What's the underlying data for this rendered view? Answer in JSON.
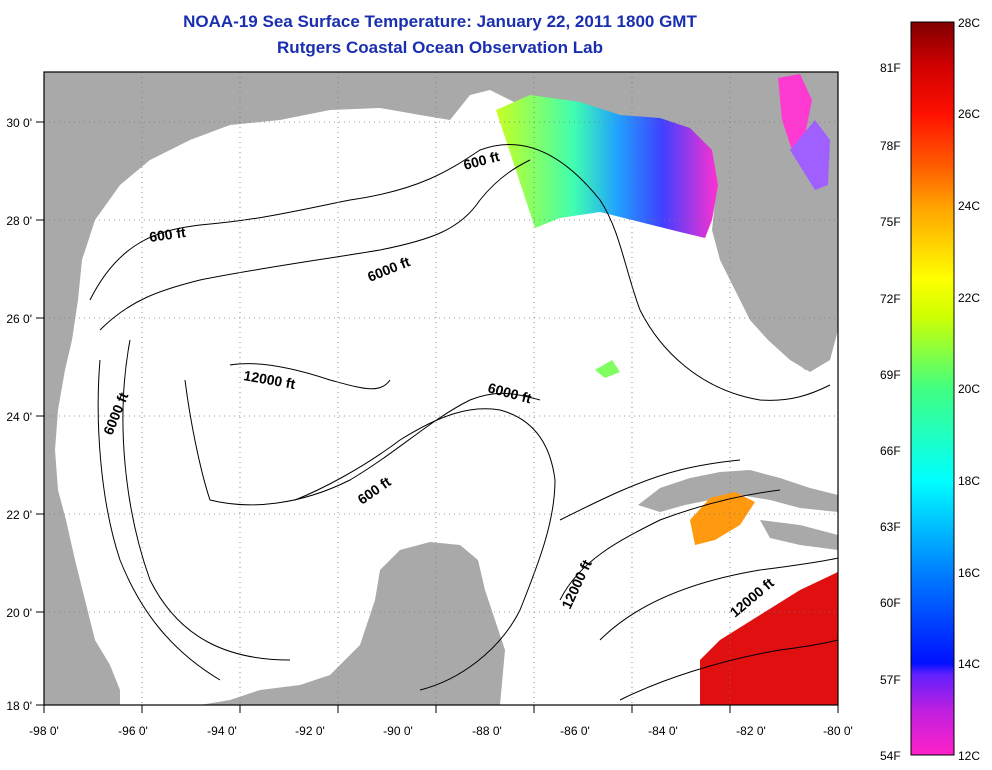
{
  "title": "NOAA-19 Sea Surface Temperature:  January 22, 2011 1800 GMT",
  "subtitle": "Rutgers Coastal Ocean Observation Lab",
  "map": {
    "x_ticks": [
      "-98 0'",
      "-96 0'",
      "-94 0'",
      "-92 0'",
      "-90 0'",
      "-88 0'",
      "-86 0'",
      "-84 0'",
      "-82 0'",
      "-80 0'"
    ],
    "y_ticks": [
      "30 0'",
      "28 0'",
      "26 0'",
      "24 0'",
      "22 0'",
      "20 0'",
      "18 0'"
    ],
    "contour_labels": [
      "600 ft",
      "600 ft",
      "6000 ft",
      "6000 ft",
      "12000 ft",
      "6000 ft",
      "600 ft",
      "12000 ft",
      "12000 ft"
    ],
    "land_color": "#a9a9a9",
    "ocean_color": "#ffffff"
  },
  "colorbar": {
    "fahrenheit": [
      "81F",
      "78F",
      "75F",
      "72F",
      "69F",
      "66F",
      "63F",
      "60F",
      "57F",
      "54F"
    ],
    "celsius": [
      "28C",
      "26C",
      "24C",
      "22C",
      "20C",
      "18C",
      "16C",
      "14C",
      "12C"
    ],
    "range_celsius": [
      12,
      28
    ],
    "colors": [
      "#ff20c8",
      "#8020ff",
      "#0020ff",
      "#00a0ff",
      "#00ffff",
      "#40ff80",
      "#c0ff00",
      "#ffff00",
      "#ffa000",
      "#ff4000",
      "#ff0000",
      "#c00000",
      "#800000"
    ]
  }
}
